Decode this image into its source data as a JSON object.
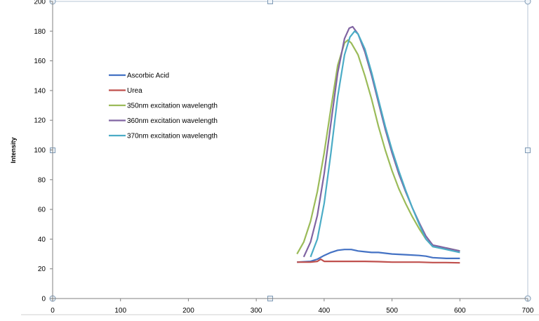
{
  "chart_data": {
    "type": "line",
    "title": "",
    "xlabel": "",
    "ylabel": "Intensity",
    "xlim": [
      0,
      700
    ],
    "ylim": [
      0,
      200
    ],
    "x_ticks": [
      0,
      100,
      200,
      300,
      400,
      500,
      600,
      700
    ],
    "y_ticks": [
      0,
      20,
      40,
      60,
      80,
      100,
      120,
      140,
      160,
      180,
      200
    ],
    "grid": false,
    "legend_position": "left",
    "series": [
      {
        "name": "Ascorbic Acid",
        "color": "#4472c4",
        "points": [
          [
            360,
            24.5
          ],
          [
            380,
            25
          ],
          [
            390,
            26.5
          ],
          [
            400,
            29
          ],
          [
            410,
            31
          ],
          [
            420,
            32.5
          ],
          [
            430,
            33
          ],
          [
            440,
            33
          ],
          [
            450,
            32
          ],
          [
            460,
            31.5
          ],
          [
            470,
            31
          ],
          [
            480,
            31
          ],
          [
            500,
            30
          ],
          [
            520,
            29.5
          ],
          [
            540,
            29
          ],
          [
            550,
            28.5
          ],
          [
            560,
            27.5
          ],
          [
            580,
            27
          ],
          [
            600,
            27
          ]
        ]
      },
      {
        "name": "Urea",
        "color": "#c0504d",
        "points": [
          [
            360,
            24.5
          ],
          [
            380,
            24.5
          ],
          [
            390,
            25
          ],
          [
            395,
            26.5
          ],
          [
            400,
            25
          ],
          [
            420,
            25
          ],
          [
            440,
            25
          ],
          [
            460,
            25
          ],
          [
            480,
            24.8
          ],
          [
            500,
            24.5
          ],
          [
            520,
            24.5
          ],
          [
            540,
            24.5
          ],
          [
            560,
            24.2
          ],
          [
            580,
            24.2
          ],
          [
            600,
            24
          ]
        ]
      },
      {
        "name": "350nm excitation wavelength",
        "color": "#9bbb59",
        "points": [
          [
            360,
            30
          ],
          [
            370,
            38
          ],
          [
            380,
            52
          ],
          [
            390,
            72
          ],
          [
            400,
            98
          ],
          [
            410,
            128
          ],
          [
            420,
            157
          ],
          [
            430,
            172
          ],
          [
            435,
            174
          ],
          [
            440,
            172
          ],
          [
            450,
            164
          ],
          [
            460,
            150
          ],
          [
            470,
            134
          ],
          [
            480,
            116
          ],
          [
            490,
            100
          ],
          [
            500,
            86
          ],
          [
            510,
            74
          ],
          [
            520,
            64
          ],
          [
            530,
            55
          ],
          [
            540,
            47
          ],
          [
            550,
            40
          ],
          [
            560,
            35
          ],
          [
            570,
            34
          ],
          [
            580,
            34
          ],
          [
            590,
            33
          ],
          [
            600,
            32
          ]
        ]
      },
      {
        "name": "360nm excitation wavelength",
        "color": "#8064a2",
        "points": [
          [
            370,
            28
          ],
          [
            380,
            38
          ],
          [
            390,
            56
          ],
          [
            400,
            84
          ],
          [
            410,
            118
          ],
          [
            420,
            152
          ],
          [
            430,
            175
          ],
          [
            437,
            182
          ],
          [
            442,
            183
          ],
          [
            450,
            178
          ],
          [
            460,
            166
          ],
          [
            470,
            150
          ],
          [
            480,
            132
          ],
          [
            490,
            114
          ],
          [
            500,
            98
          ],
          [
            510,
            84
          ],
          [
            520,
            72
          ],
          [
            530,
            61
          ],
          [
            540,
            51
          ],
          [
            550,
            42
          ],
          [
            560,
            36
          ],
          [
            570,
            35
          ],
          [
            580,
            34
          ],
          [
            590,
            33
          ],
          [
            600,
            32
          ]
        ]
      },
      {
        "name": "370nm excitation wavelength",
        "color": "#4bacc6",
        "points": [
          [
            380,
            28
          ],
          [
            390,
            40
          ],
          [
            400,
            64
          ],
          [
            410,
            98
          ],
          [
            420,
            136
          ],
          [
            430,
            164
          ],
          [
            438,
            176
          ],
          [
            445,
            180
          ],
          [
            450,
            178
          ],
          [
            460,
            168
          ],
          [
            470,
            152
          ],
          [
            480,
            134
          ],
          [
            490,
            116
          ],
          [
            500,
            100
          ],
          [
            510,
            86
          ],
          [
            520,
            73
          ],
          [
            530,
            61
          ],
          [
            540,
            50
          ],
          [
            550,
            40
          ],
          [
            560,
            35
          ],
          [
            570,
            34
          ],
          [
            580,
            33
          ],
          [
            590,
            32
          ],
          [
            600,
            31
          ]
        ]
      }
    ]
  }
}
